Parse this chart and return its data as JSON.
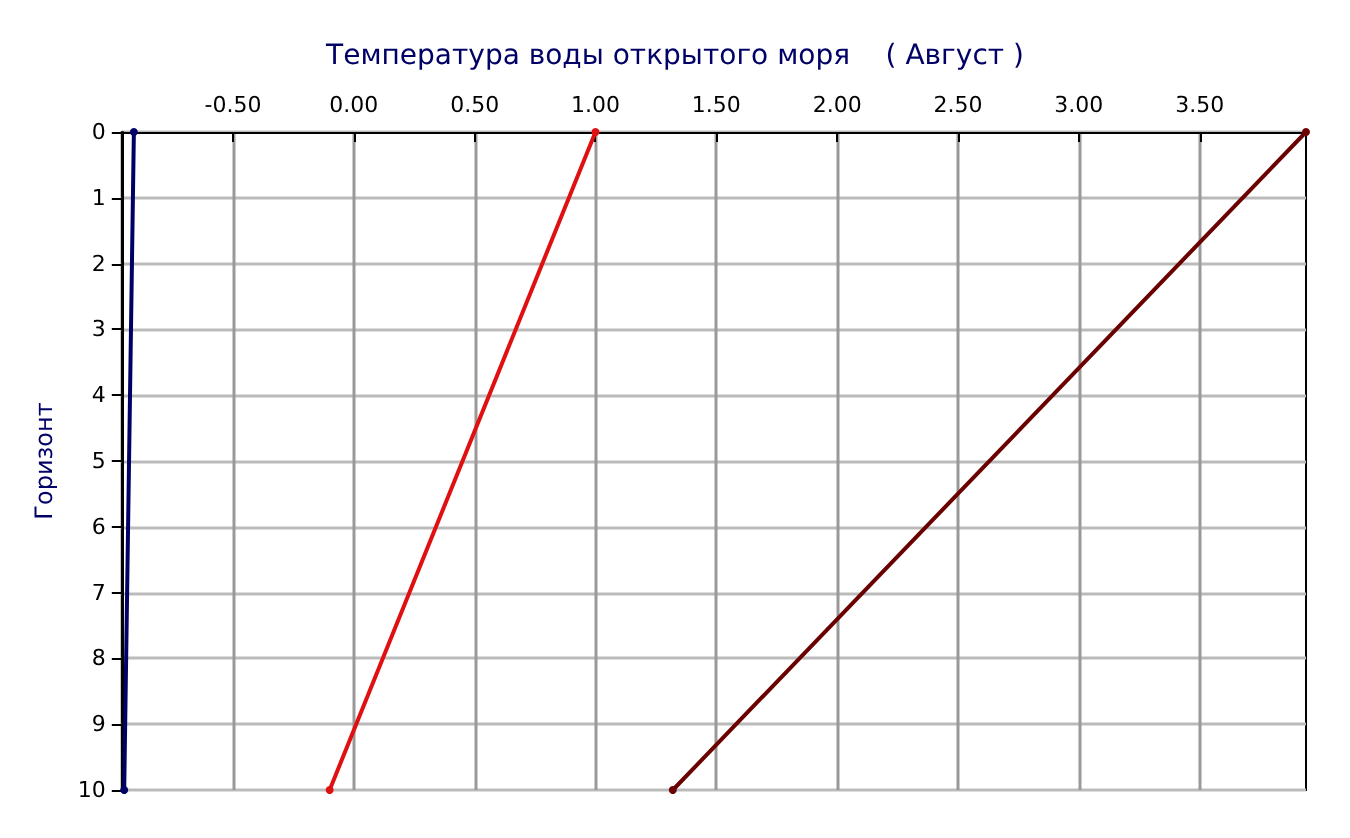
{
  "chart_data": {
    "type": "line",
    "title": "Температура воды открытого моря    ( Август )",
    "ylabel": "Горизонт",
    "xlim": [
      -0.96,
      3.94
    ],
    "xticks": [
      {
        "value": -0.5,
        "label": "-0.50"
      },
      {
        "value": 0,
        "label": "0.00"
      },
      {
        "value": 0.5,
        "label": "0.50"
      },
      {
        "value": 1,
        "label": "1.00"
      },
      {
        "value": 1.5,
        "label": "1.50"
      },
      {
        "value": 2,
        "label": "2.00"
      },
      {
        "value": 2.5,
        "label": "2.50"
      },
      {
        "value": 3,
        "label": "3.00"
      },
      {
        "value": 3.5,
        "label": "3.50"
      }
    ],
    "ylim": [
      10,
      0
    ],
    "yticks": [
      0,
      1,
      2,
      3,
      4,
      5,
      6,
      7,
      8,
      9,
      10
    ],
    "grid": true,
    "marker": "circle",
    "line_style": "solid",
    "series": [
      {
        "color": "#000066",
        "x": [
          -0.91,
          -0.95
        ],
        "values": [
          0,
          10
        ]
      },
      {
        "color": "#e01010",
        "x": [
          1.0,
          -0.1
        ],
        "values": [
          0,
          10
        ]
      },
      {
        "color": "#6b0000",
        "x": [
          3.94,
          1.32
        ],
        "values": [
          0,
          10
        ]
      }
    ]
  }
}
